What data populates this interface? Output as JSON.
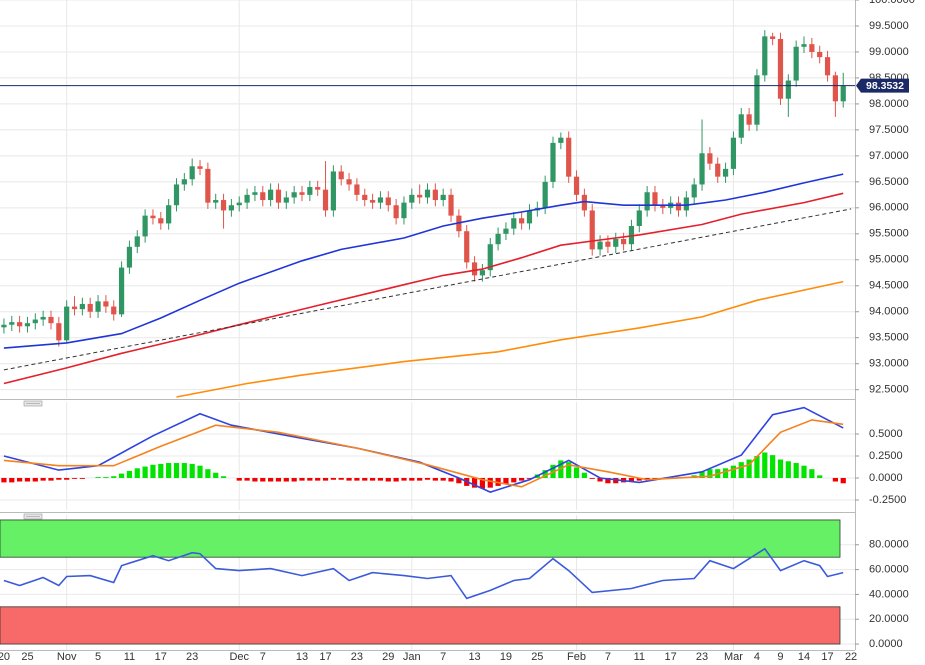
{
  "chart_data": [
    {
      "type": "candlestick",
      "categories": [
        "20",
        null,
        null,
        "25",
        null,
        null,
        null,
        null,
        "Nov",
        null,
        null,
        null,
        "5",
        null,
        null,
        null,
        "11",
        null,
        null,
        null,
        "17",
        null,
        null,
        null,
        "23",
        null,
        null,
        null,
        null,
        null,
        "Dec",
        null,
        null,
        "7",
        null,
        null,
        null,
        null,
        "13",
        null,
        null,
        "17",
        null,
        null,
        null,
        "23",
        null,
        null,
        null,
        "29",
        null,
        null,
        "Jan",
        null,
        null,
        null,
        "7",
        null,
        null,
        null,
        "13",
        null,
        null,
        null,
        "19",
        null,
        null,
        null,
        "25",
        null,
        null,
        null,
        null,
        "Feb",
        null,
        null,
        null,
        "7",
        null,
        null,
        null,
        "11",
        null,
        null,
        null,
        "17",
        null,
        null,
        null,
        "23",
        null,
        null,
        null,
        "Mar",
        null,
        null,
        "4",
        null,
        null,
        "9",
        null,
        null,
        "14",
        null,
        null,
        "17",
        null,
        null,
        "22"
      ],
      "open": [
        93.7,
        93.75,
        93.8,
        93.72,
        93.78,
        93.85,
        93.9,
        93.78,
        93.45,
        94.1,
        94.05,
        94.15,
        94.0,
        94.2,
        94.1,
        93.95,
        94.85,
        95.25,
        95.45,
        95.85,
        95.8,
        95.7,
        96.05,
        96.45,
        96.55,
        96.8,
        96.75,
        96.1,
        96.15,
        95.95,
        96.05,
        96.1,
        96.25,
        96.3,
        96.15,
        96.35,
        96.1,
        96.2,
        96.3,
        96.25,
        96.4,
        96.35,
        95.95,
        96.7,
        96.55,
        96.45,
        96.25,
        96.15,
        96.1,
        96.2,
        96.05,
        95.8,
        96.1,
        96.25,
        96.2,
        96.35,
        96.15,
        96.25,
        95.85,
        95.55,
        94.95,
        94.7,
        94.8,
        95.3,
        95.5,
        95.6,
        95.8,
        95.7,
        95.95,
        96.0,
        96.5,
        97.25,
        97.35,
        96.6,
        96.25,
        95.95,
        95.2,
        95.35,
        95.25,
        95.4,
        95.3,
        95.65,
        95.95,
        96.3,
        96.05,
        96.0,
        96.1,
        95.95,
        96.2,
        96.45,
        97.05,
        96.85,
        96.6,
        96.75,
        97.35,
        97.8,
        97.6,
        98.55,
        99.3,
        99.25,
        98.1,
        98.45,
        99.1,
        99.15,
        99.0,
        98.9,
        98.55,
        98.05,
        null
      ],
      "high": [
        93.87,
        93.92,
        93.92,
        93.9,
        93.97,
        94.02,
        94.02,
        93.9,
        94.22,
        94.3,
        94.27,
        94.27,
        94.32,
        94.32,
        94.22,
        94.97,
        95.37,
        95.57,
        95.97,
        95.97,
        95.92,
        96.17,
        96.57,
        96.67,
        96.95,
        96.92,
        96.87,
        96.27,
        96.27,
        96.17,
        96.22,
        96.37,
        96.42,
        96.42,
        96.47,
        96.47,
        96.32,
        96.42,
        96.42,
        96.52,
        96.52,
        96.9,
        96.82,
        96.82,
        96.67,
        96.57,
        96.37,
        96.27,
        96.32,
        96.32,
        96.17,
        96.22,
        96.37,
        96.45,
        96.47,
        96.47,
        96.37,
        96.37,
        95.97,
        95.67,
        95.07,
        94.92,
        95.42,
        95.62,
        95.72,
        95.92,
        95.92,
        96.07,
        96.12,
        96.62,
        97.37,
        97.45,
        97.47,
        96.72,
        96.37,
        96.07,
        95.47,
        95.47,
        95.52,
        95.52,
        95.77,
        96.07,
        96.42,
        96.42,
        96.17,
        96.22,
        96.22,
        96.32,
        96.57,
        97.7,
        97.17,
        96.97,
        96.87,
        97.47,
        97.92,
        97.92,
        98.67,
        99.42,
        99.37,
        99.37,
        98.57,
        99.22,
        99.3,
        99.27,
        99.12,
        99.02,
        98.62,
        98.6,
        null
      ],
      "low": [
        93.58,
        93.63,
        93.6,
        93.6,
        93.66,
        93.73,
        93.66,
        93.33,
        93.4,
        93.93,
        93.93,
        93.88,
        93.88,
        93.98,
        93.83,
        93.9,
        94.73,
        95.13,
        95.33,
        95.68,
        95.58,
        95.58,
        95.93,
        96.33,
        96.43,
        96.63,
        95.98,
        95.98,
        95.6,
        95.83,
        95.93,
        95.98,
        96.13,
        96.03,
        96.03,
        95.98,
        95.98,
        96.08,
        96.13,
        96.13,
        96.23,
        95.83,
        95.83,
        96.43,
        96.33,
        96.13,
        96.03,
        95.98,
        95.98,
        95.93,
        95.68,
        95.68,
        95.98,
        96.08,
        96.08,
        96.03,
        96.03,
        95.73,
        95.43,
        94.83,
        94.58,
        94.58,
        94.68,
        95.18,
        95.38,
        95.48,
        95.58,
        95.58,
        95.83,
        95.88,
        96.38,
        97.13,
        96.48,
        96.13,
        95.83,
        95.08,
        95.08,
        95.13,
        95.13,
        95.18,
        95.18,
        95.53,
        95.83,
        95.93,
        95.88,
        95.88,
        95.83,
        95.83,
        96.08,
        96.33,
        96.73,
        96.48,
        96.48,
        96.63,
        97.23,
        97.48,
        97.48,
        98.43,
        99.13,
        97.98,
        97.75,
        98.33,
        98.98,
        98.88,
        98.78,
        98.43,
        97.75,
        97.93,
        null
      ],
      "close": [
        93.75,
        93.8,
        93.72,
        93.78,
        93.85,
        93.9,
        93.78,
        93.45,
        94.1,
        94.05,
        94.15,
        94.0,
        94.2,
        94.1,
        93.95,
        94.85,
        95.25,
        95.45,
        95.85,
        95.8,
        95.7,
        96.05,
        96.45,
        96.55,
        96.8,
        96.75,
        96.1,
        96.15,
        95.95,
        96.05,
        96.1,
        96.25,
        96.3,
        96.15,
        96.35,
        96.1,
        96.2,
        96.3,
        96.25,
        96.4,
        96.35,
        95.95,
        96.7,
        96.55,
        96.45,
        96.25,
        96.15,
        96.1,
        96.2,
        96.05,
        95.8,
        96.1,
        96.25,
        96.2,
        96.35,
        96.15,
        96.25,
        95.85,
        95.55,
        94.95,
        94.7,
        94.8,
        95.3,
        95.5,
        95.6,
        95.8,
        95.7,
        95.95,
        96.0,
        96.5,
        97.25,
        97.35,
        96.6,
        96.25,
        95.95,
        95.2,
        95.35,
        95.25,
        95.4,
        95.3,
        95.65,
        95.95,
        96.3,
        96.05,
        96.0,
        96.1,
        95.95,
        96.2,
        96.45,
        97.05,
        96.85,
        96.6,
        96.75,
        97.35,
        97.8,
        97.6,
        98.55,
        99.3,
        99.25,
        98.1,
        98.45,
        99.1,
        99.15,
        99.0,
        98.9,
        98.55,
        98.05,
        98.35,
        null
      ],
      "up_color": "#2f9664",
      "down_color": "#e0554b",
      "overlays": [
        {
          "color": "#1f35d8",
          "x": [
            0,
            8,
            15,
            20,
            25,
            30,
            38,
            43,
            51,
            56,
            61,
            66,
            71,
            74,
            79,
            87,
            92,
            97,
            102,
            107
          ],
          "values": [
            93.3,
            93.4,
            93.58,
            93.88,
            94.22,
            94.55,
            94.98,
            95.2,
            95.42,
            95.65,
            95.8,
            95.92,
            96.05,
            96.12,
            96.05,
            96.05,
            96.15,
            96.3,
            96.48,
            96.65
          ]
        },
        {
          "color": "#e3202b",
          "x": [
            0,
            8,
            15,
            25,
            30,
            40,
            51,
            56,
            61,
            66,
            71,
            76,
            81,
            89,
            94,
            102,
            107
          ],
          "values": [
            92.62,
            92.92,
            93.2,
            93.56,
            93.75,
            94.12,
            94.52,
            94.7,
            94.82,
            95.04,
            95.28,
            95.38,
            95.48,
            95.68,
            95.88,
            96.1,
            96.28
          ]
        },
        {
          "color": "#ff8c0a",
          "x": [
            22,
            31,
            38,
            51,
            63,
            71,
            81,
            89,
            96,
            107
          ],
          "values": [
            92.36,
            92.62,
            92.78,
            93.04,
            93.23,
            93.46,
            93.69,
            93.9,
            94.22,
            94.58
          ]
        },
        {
          "color": "#333333",
          "dash": true,
          "x": [
            0,
            108
          ],
          "values": [
            92.88,
            95.98
          ]
        }
      ],
      "last_price": 98.3532,
      "last_price_color": "#1b2a66",
      "ylim": [
        92.34,
        100.0
      ],
      "yticks": [
        {
          "value": 92.5,
          "label": "92.5000"
        },
        {
          "value": 93.0,
          "label": "93.0000"
        },
        {
          "value": 93.5,
          "label": "93.5000"
        },
        {
          "value": 94.0,
          "label": "94.0000"
        },
        {
          "value": 94.5,
          "label": "94.5000"
        },
        {
          "value": 95.0,
          "label": "95.0000"
        },
        {
          "value": 95.5,
          "label": "95.5000"
        },
        {
          "value": 96.0,
          "label": "96.0000"
        },
        {
          "value": 96.5,
          "label": "96.5000"
        },
        {
          "value": 97.0,
          "label": "97.0000"
        },
        {
          "value": 97.5,
          "label": "97.5000"
        },
        {
          "value": 98.0,
          "label": "98.0000"
        },
        {
          "value": 98.5,
          "label": "98.5000"
        },
        {
          "value": 99.0,
          "label": "99.0000"
        },
        {
          "value": 99.5,
          "label": "99.5000"
        },
        {
          "value": 100.0,
          "label": "100.0000"
        }
      ],
      "grid": true
    },
    {
      "type": "bar",
      "values": [
        -0.05,
        -0.05,
        -0.04,
        -0.04,
        -0.04,
        -0.03,
        -0.03,
        -0.02,
        -0.02,
        -0.01,
        -0.01,
        0,
        0.01,
        0.01,
        0.02,
        0.05,
        0.08,
        0.11,
        0.13,
        0.15,
        0.16,
        0.17,
        0.17,
        0.17,
        0.16,
        0.14,
        0.1,
        0.06,
        0.02,
        0,
        -0.03,
        -0.03,
        -0.04,
        -0.04,
        -0.04,
        -0.04,
        -0.04,
        -0.04,
        -0.03,
        -0.03,
        -0.03,
        -0.03,
        -0.02,
        -0.02,
        -0.03,
        -0.03,
        -0.03,
        -0.03,
        -0.03,
        -0.04,
        -0.04,
        -0.03,
        -0.03,
        -0.03,
        -0.02,
        -0.03,
        -0.03,
        -0.04,
        -0.06,
        -0.09,
        -0.11,
        -0.12,
        -0.11,
        -0.09,
        -0.07,
        -0.05,
        -0.03,
        -0.01,
        0.04,
        0.09,
        0.15,
        0.2,
        0.18,
        0.12,
        0.06,
        -0.01,
        -0.04,
        -0.06,
        -0.06,
        -0.05,
        -0.04,
        -0.03,
        -0.02,
        -0.01,
        0,
        0.01,
        0.01,
        0.01,
        0.03,
        0.07,
        0.1,
        0.1,
        0.11,
        0.14,
        0.18,
        0.21,
        0.25,
        0.29,
        0.26,
        0.21,
        0.19,
        0.17,
        0.14,
        0.1,
        0.03,
        0,
        -0.04,
        -0.06,
        null
      ],
      "positive_color": "#00e400",
      "negative_color": "#f00000",
      "series": [
        {
          "color": "#2f44e0",
          "x": [
            0,
            7,
            12,
            19,
            25,
            29,
            38,
            45,
            53,
            58,
            62,
            67,
            72,
            76,
            81,
            89,
            94,
            98,
            102,
            107
          ],
          "values": [
            0.25,
            0.09,
            0.14,
            0.48,
            0.73,
            0.6,
            0.45,
            0.34,
            0.18,
            0,
            -0.16,
            -0.02,
            0.2,
            0,
            -0.05,
            0.07,
            0.26,
            0.72,
            0.8,
            0.57
          ]
        },
        {
          "color": "#f58220",
          "x": [
            0,
            7,
            14,
            20,
            27,
            35,
            45,
            54,
            61,
            66,
            72,
            77,
            82,
            90,
            95,
            99,
            103,
            107
          ],
          "values": [
            0.2,
            0.14,
            0.14,
            0.36,
            0.6,
            0.52,
            0.34,
            0.15,
            -0.02,
            -0.1,
            0.15,
            0.07,
            -0.02,
            0.02,
            0.15,
            0.52,
            0.66,
            0.61
          ]
        }
      ],
      "ylim": [
        -0.364,
        0.864
      ],
      "yticks": [
        {
          "value": -0.25,
          "label": "-0.2500"
        },
        {
          "value": 0,
          "label": "0.0000"
        },
        {
          "value": 0.25,
          "label": "0.2500"
        },
        {
          "value": 0.5,
          "label": "0.5000"
        }
      ],
      "grid": true
    },
    {
      "type": "line",
      "bands": [
        {
          "from": 70,
          "to": 100,
          "color": "#66f066"
        },
        {
          "from": 0,
          "to": 30,
          "color": "#f86a6a"
        }
      ],
      "series": [
        {
          "color": "#3b5bdb",
          "x": [
            0,
            2,
            5,
            7,
            8,
            11,
            14,
            15,
            19,
            21,
            24,
            25,
            27,
            30,
            34,
            38,
            42,
            44,
            47,
            51,
            54,
            57,
            59,
            62,
            65,
            67,
            70,
            72,
            75,
            80,
            84,
            88,
            90,
            93,
            97,
            99,
            102,
            104,
            105,
            107
          ],
          "values": [
            51.2,
            47.2,
            53.6,
            47.2,
            54.4,
            55.2,
            49.6,
            63.2,
            71.2,
            67.2,
            73.6,
            72.8,
            60.8,
            59.2,
            60.8,
            55.2,
            60.8,
            51.2,
            57.6,
            55.2,
            52.8,
            55.2,
            36.8,
            43.2,
            51.2,
            52.8,
            68.8,
            59.2,
            41.6,
            44.8,
            51.2,
            52.8,
            67.2,
            60.8,
            76.8,
            59.2,
            67.2,
            63.2,
            54.4,
            57.6
          ]
        }
      ],
      "ylim": [
        -4.8,
        104
      ],
      "yticks": [
        {
          "value": 0,
          "label": "0.0000"
        },
        {
          "value": 20,
          "label": "20.0000"
        },
        {
          "value": 40,
          "label": "40.0000"
        },
        {
          "value": 60,
          "label": "60.0000"
        },
        {
          "value": 80,
          "label": "80.0000"
        }
      ],
      "grid": true
    }
  ]
}
